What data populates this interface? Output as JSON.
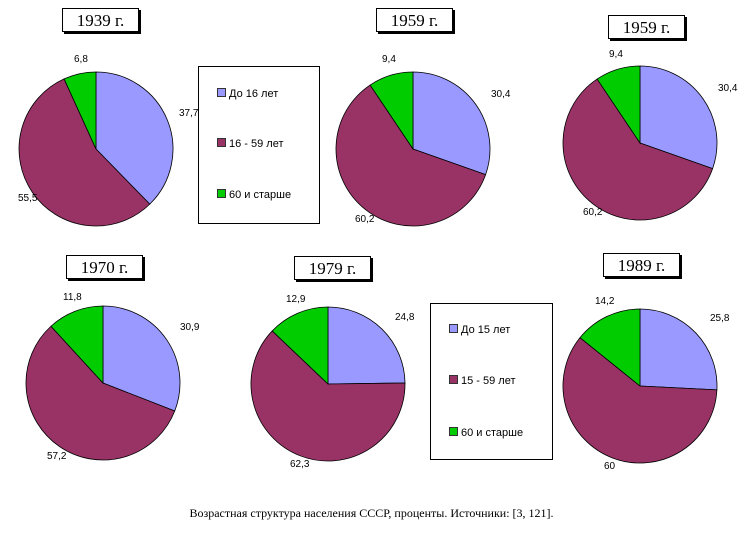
{
  "colors": {
    "young": "#9999FF",
    "working": "#993366",
    "old": "#00CC00"
  },
  "legends": [
    {
      "items": [
        "До 16 лет",
        "16 - 59 лет",
        "60 и старше"
      ]
    },
    {
      "items": [
        "До 15 лет",
        "15 - 59 лет",
        "60 и старше"
      ]
    }
  ],
  "caption": "Возрастная структура населения СССР, проценты. Источники: [3, 121].",
  "chart_data": [
    {
      "type": "pie",
      "title": "1939 г.",
      "categories": [
        "До 16 лет",
        "16 - 59 лет",
        "60 и старше"
      ],
      "values": [
        37.7,
        55.5,
        6.8
      ],
      "labels": [
        "37,7",
        "55,5",
        "6,8"
      ]
    },
    {
      "type": "pie",
      "title": "1959 г.",
      "categories": [
        "До 16 лет",
        "16 - 59 лет",
        "60 и старше"
      ],
      "values": [
        30.4,
        60.2,
        9.4
      ],
      "labels": [
        "30,4",
        "60,2",
        "9,4"
      ]
    },
    {
      "type": "pie",
      "title": "1959 г.",
      "categories": [
        "До 15 лет",
        "15 - 59 лет",
        "60 и старше"
      ],
      "values": [
        30.4,
        60.2,
        9.4
      ],
      "labels": [
        "30,4",
        "60,2",
        "9,4"
      ]
    },
    {
      "type": "pie",
      "title": "1970 г.",
      "categories": [
        "До 15 лет",
        "15 - 59 лет",
        "60 и старше"
      ],
      "values": [
        30.9,
        57.2,
        11.8
      ],
      "labels": [
        "30,9",
        "57,2",
        "11,8"
      ]
    },
    {
      "type": "pie",
      "title": "1979 г.",
      "categories": [
        "До 15 лет",
        "15 - 59 лет",
        "60 и старше"
      ],
      "values": [
        24.8,
        62.3,
        12.9
      ],
      "labels": [
        "24,8",
        "62,3",
        "12,9"
      ]
    },
    {
      "type": "pie",
      "title": "1989 г.",
      "categories": [
        "До 15 лет",
        "15 - 59 лет",
        "60 и старше"
      ],
      "values": [
        25.8,
        60,
        14.2
      ],
      "labels": [
        "25,8",
        "60",
        "14,2"
      ]
    }
  ]
}
